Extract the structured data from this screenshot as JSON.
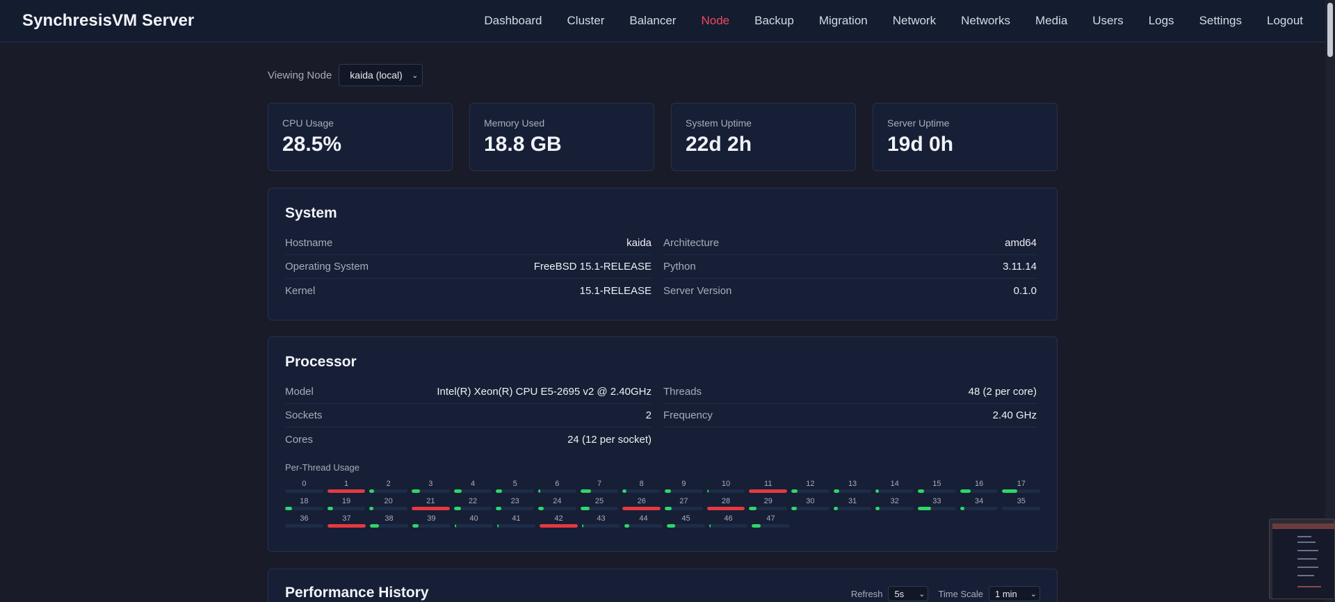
{
  "app": {
    "title": "SynchresisVM Server"
  },
  "nav": {
    "items": [
      {
        "label": "Dashboard",
        "active": false
      },
      {
        "label": "Cluster",
        "active": false
      },
      {
        "label": "Balancer",
        "active": false
      },
      {
        "label": "Node",
        "active": true
      },
      {
        "label": "Backup",
        "active": false
      },
      {
        "label": "Migration",
        "active": false
      },
      {
        "label": "Network",
        "active": false
      },
      {
        "label": "Networks",
        "active": false
      },
      {
        "label": "Media",
        "active": false
      },
      {
        "label": "Users",
        "active": false
      },
      {
        "label": "Logs",
        "active": false
      },
      {
        "label": "Settings",
        "active": false
      },
      {
        "label": "Logout",
        "active": false
      }
    ]
  },
  "viewing": {
    "label": "Viewing Node",
    "selected": "kaida (local)"
  },
  "stats": [
    {
      "title": "CPU Usage",
      "value": "28.5%"
    },
    {
      "title": "Memory Used",
      "value": "18.8 GB"
    },
    {
      "title": "System Uptime",
      "value": "22d 2h"
    },
    {
      "title": "Server Uptime",
      "value": "19d 0h"
    }
  ],
  "system": {
    "title": "System",
    "left": [
      {
        "key": "Hostname",
        "value": "kaida"
      },
      {
        "key": "Operating System",
        "value": "FreeBSD 15.1-RELEASE"
      },
      {
        "key": "Kernel",
        "value": "15.1-RELEASE"
      }
    ],
    "right": [
      {
        "key": "Architecture",
        "value": "amd64"
      },
      {
        "key": "Python",
        "value": "3.11.14"
      },
      {
        "key": "Server Version",
        "value": "0.1.0"
      }
    ]
  },
  "processor": {
    "title": "Processor",
    "left": [
      {
        "key": "Model",
        "value": "Intel(R) Xeon(R) CPU E5-2695 v2 @ 2.40GHz"
      },
      {
        "key": "Sockets",
        "value": "2"
      },
      {
        "key": "Cores",
        "value": "24 (12 per socket)"
      }
    ],
    "right": [
      {
        "key": "Threads",
        "value": "48 (2 per core)"
      },
      {
        "key": "Frequency",
        "value": "2.40 GHz"
      }
    ],
    "per_thread_title": "Per-Thread Usage",
    "threads": [
      {
        "id": "0",
        "usage": 0.0
      },
      {
        "id": "1",
        "usage": 1.0
      },
      {
        "id": "2",
        "usage": 0.12
      },
      {
        "id": "3",
        "usage": 0.22
      },
      {
        "id": "4",
        "usage": 0.2
      },
      {
        "id": "5",
        "usage": 0.16
      },
      {
        "id": "6",
        "usage": 0.06
      },
      {
        "id": "7",
        "usage": 0.28
      },
      {
        "id": "8",
        "usage": 0.1
      },
      {
        "id": "9",
        "usage": 0.16
      },
      {
        "id": "10",
        "usage": 0.04
      },
      {
        "id": "11",
        "usage": 1.0
      },
      {
        "id": "12",
        "usage": 0.16
      },
      {
        "id": "13",
        "usage": 0.16
      },
      {
        "id": "14",
        "usage": 0.08
      },
      {
        "id": "15",
        "usage": 0.16
      },
      {
        "id": "16",
        "usage": 0.28
      },
      {
        "id": "17",
        "usage": 0.4
      },
      {
        "id": "18",
        "usage": 0.18
      },
      {
        "id": "19",
        "usage": 0.16
      },
      {
        "id": "20",
        "usage": 0.1
      },
      {
        "id": "21",
        "usage": 1.0
      },
      {
        "id": "22",
        "usage": 0.18
      },
      {
        "id": "23",
        "usage": 0.14
      },
      {
        "id": "24",
        "usage": 0.14
      },
      {
        "id": "25",
        "usage": 0.24
      },
      {
        "id": "26",
        "usage": 1.0
      },
      {
        "id": "27",
        "usage": 0.18
      },
      {
        "id": "28",
        "usage": 1.0
      },
      {
        "id": "29",
        "usage": 0.2
      },
      {
        "id": "30",
        "usage": 0.14
      },
      {
        "id": "31",
        "usage": 0.12
      },
      {
        "id": "32",
        "usage": 0.1
      },
      {
        "id": "33",
        "usage": 0.34
      },
      {
        "id": "34",
        "usage": 0.12
      },
      {
        "id": "35",
        "usage": 0.0
      },
      {
        "id": "36",
        "usage": 0.0
      },
      {
        "id": "37",
        "usage": 1.0
      },
      {
        "id": "38",
        "usage": 0.24
      },
      {
        "id": "39",
        "usage": 0.16
      },
      {
        "id": "40",
        "usage": 0.04
      },
      {
        "id": "41",
        "usage": 0.04
      },
      {
        "id": "42",
        "usage": 1.0
      },
      {
        "id": "43",
        "usage": 0.04
      },
      {
        "id": "44",
        "usage": 0.12
      },
      {
        "id": "45",
        "usage": 0.22
      },
      {
        "id": "46",
        "usage": 0.04
      },
      {
        "id": "47",
        "usage": 0.24
      }
    ]
  },
  "performance": {
    "title": "Performance History",
    "refresh_label": "Refresh",
    "refresh_value": "5s",
    "timescale_label": "Time Scale",
    "timescale_value": "1 min"
  },
  "colors": {
    "accent": "#ef4a5f",
    "high": "#e5393f",
    "normal": "#2fd668"
  }
}
